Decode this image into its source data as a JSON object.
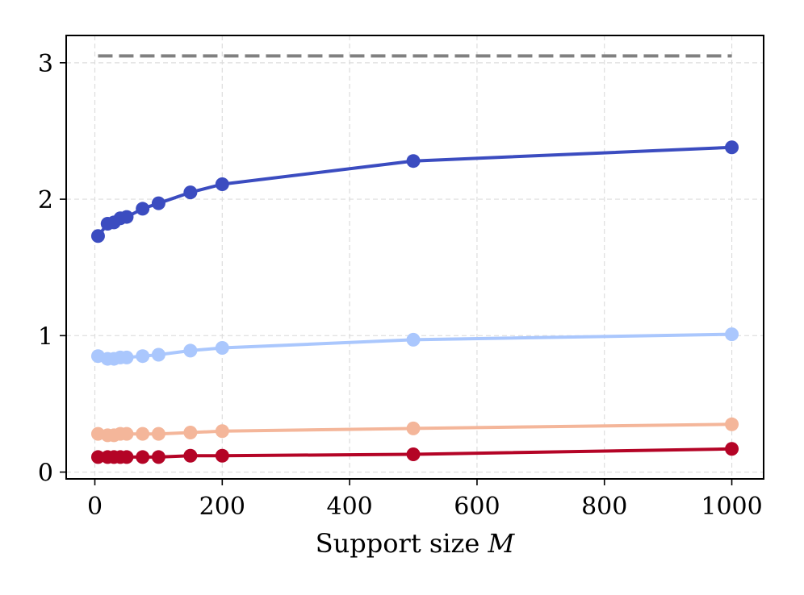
{
  "chart_data": {
    "type": "line",
    "title": "",
    "xlabel": "Support size",
    "xlabel_symbol": "M",
    "ylabel": "",
    "xlim": [
      -45,
      1050
    ],
    "ylim": [
      -0.05,
      3.2
    ],
    "xticks": [
      0,
      200,
      400,
      600,
      800,
      1000
    ],
    "yticks": [
      0,
      1,
      2,
      3
    ],
    "grid": true,
    "x": [
      5,
      20,
      30,
      40,
      50,
      75,
      100,
      150,
      200,
      500,
      1000
    ],
    "reference_line": {
      "y": 3.05,
      "x_range": [
        5,
        1000
      ],
      "style": "dashed",
      "color": "#808080"
    },
    "series": [
      {
        "color": "#3b4cc0",
        "values": [
          1.73,
          1.82,
          1.83,
          1.86,
          1.87,
          1.93,
          1.97,
          2.05,
          2.11,
          2.28,
          2.38
        ]
      },
      {
        "color": "#aac7fd",
        "values": [
          0.85,
          0.83,
          0.83,
          0.84,
          0.84,
          0.85,
          0.86,
          0.89,
          0.91,
          0.97,
          1.01
        ]
      },
      {
        "color": "#f4b69a",
        "values": [
          0.28,
          0.27,
          0.27,
          0.28,
          0.28,
          0.28,
          0.28,
          0.29,
          0.3,
          0.32,
          0.35
        ]
      },
      {
        "color": "#b40426",
        "values": [
          0.11,
          0.11,
          0.11,
          0.11,
          0.11,
          0.11,
          0.11,
          0.12,
          0.12,
          0.13,
          0.17
        ]
      }
    ]
  }
}
